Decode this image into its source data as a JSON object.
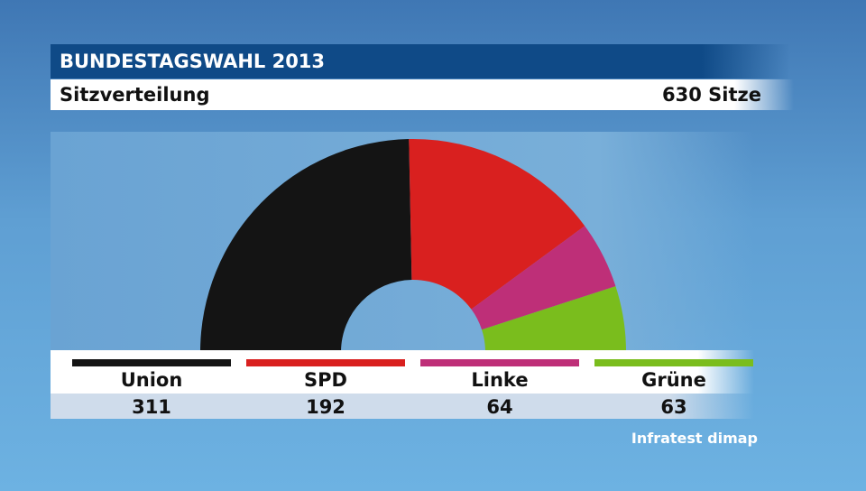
{
  "header": {
    "title": "BUNDESTAGSWAHL 2013",
    "subtitle": "Sitzverteilung",
    "total_label": "630 Sitze"
  },
  "source": "Infratest dimap",
  "colors": {
    "Union": "#141414",
    "SPD": "#d9201f",
    "Linke": "#be2f78",
    "Grüne": "#7abd1d"
  },
  "legend": [
    {
      "label": "Union",
      "value": "311"
    },
    {
      "label": "SPD",
      "value": "192"
    },
    {
      "label": "Linke",
      "value": "64"
    },
    {
      "label": "Grüne",
      "value": "63"
    }
  ],
  "chart_data": {
    "type": "pie",
    "variant": "half-donut (parliament seat distribution)",
    "title": "Sitzverteilung",
    "total": 630,
    "categories": [
      "Union",
      "SPD",
      "Linke",
      "Grüne"
    ],
    "values": [
      311,
      192,
      64,
      63
    ],
    "legend_placement": "bottom"
  }
}
